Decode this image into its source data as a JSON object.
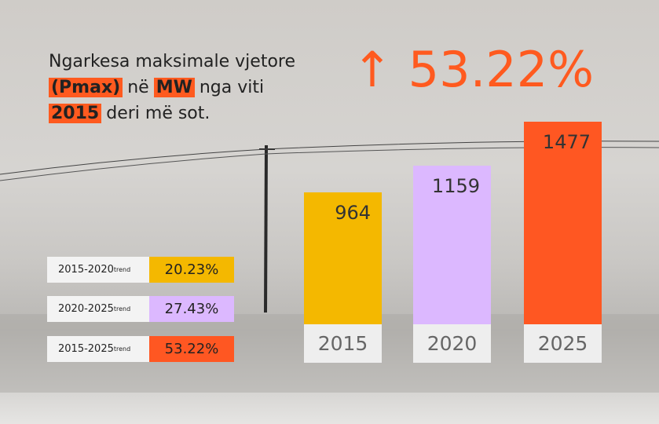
{
  "title_lines": [
    [
      {
        "text": "Ngarkesa maksimale vjetore",
        "highlight": false
      }
    ],
    [
      {
        "text": "(Pmax)",
        "highlight": true
      },
      {
        "text": "në",
        "highlight": false
      },
      {
        "text": "MW",
        "highlight": true
      },
      {
        "text": "nga viti",
        "highlight": false
      }
    ],
    [
      {
        "text": "2015",
        "highlight": true
      },
      {
        "text": "deri më sot.",
        "highlight": false
      }
    ]
  ],
  "headline": "53.22%",
  "accent_color": "#ff5a1f",
  "chart_data": {
    "type": "bar",
    "categories": [
      "2015",
      "2020",
      "2025"
    ],
    "values": [
      964,
      1159,
      1477
    ],
    "colors": [
      "#f4b800",
      "#dcb8ff",
      "#ff5722"
    ]
  },
  "trends": [
    {
      "period": "2015-2020",
      "sup": "trend",
      "value": "20.23%",
      "color": "#f4b800"
    },
    {
      "period": "2020-2025",
      "sup": "trend",
      "value": "27.43%",
      "color": "#dcb8ff"
    },
    {
      "period": "2015-2025",
      "sup": "trend",
      "value": "53.22%",
      "color": "#ff5722"
    }
  ]
}
